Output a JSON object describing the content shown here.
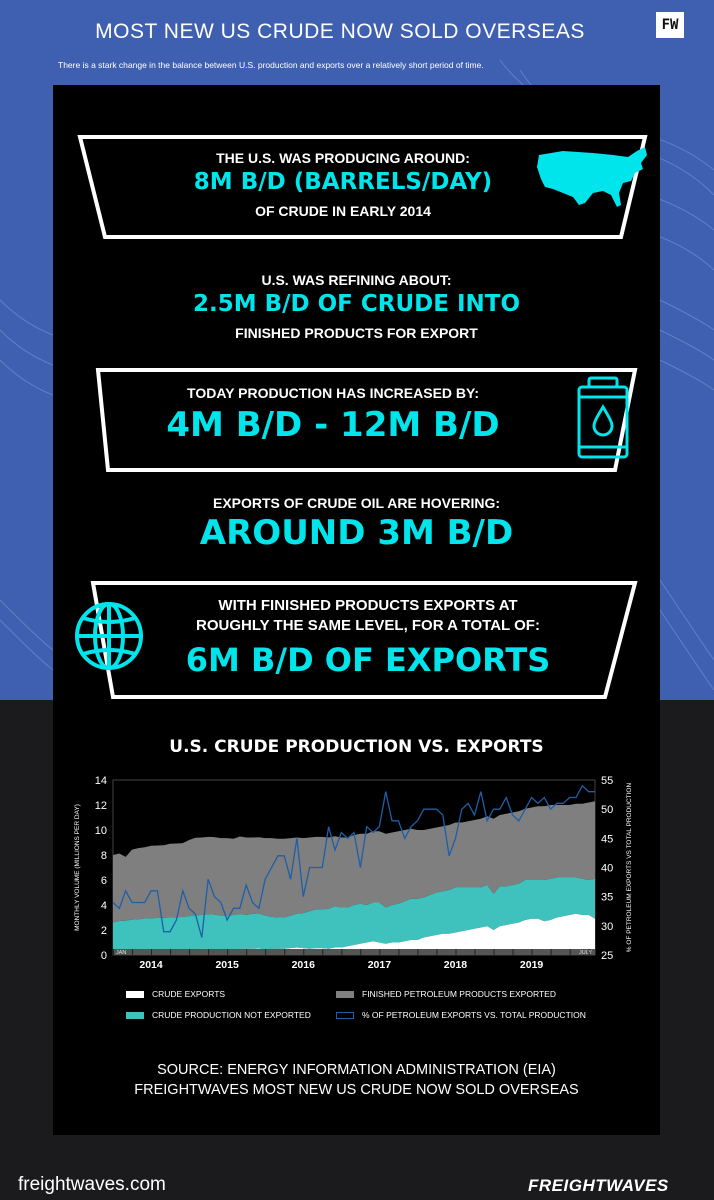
{
  "header": {
    "title": "MOST NEW US CRUDE NOW SOLD OVERSEAS",
    "subtitle": "There is a stark change in the balance between U.S. production and exports over a relatively short period of time."
  },
  "facts": {
    "f1_line1": "THE U.S. WAS PRODUCING AROUND:",
    "f1_line2": "8M B/D (BARRELS/DAY)",
    "f1_line3": "OF CRUDE IN EARLY 2014",
    "f2_line1": "U.S. WAS REFINING ABOUT:",
    "f2_line2": "2.5M B/D OF CRUDE INTO",
    "f2_line3": "FINISHED PRODUCTS FOR EXPORT",
    "f3_line1": "TODAY PRODUCTION HAS INCREASED BY:",
    "f3_line2": "4M B/D - 12M B/D",
    "f4_line1": "EXPORTS OF CRUDE OIL ARE HOVERING:",
    "f4_line2": "AROUND 3M B/D",
    "f5_line1": "WITH FINISHED PRODUCTS EXPORTS AT",
    "f5_line2": "ROUGHLY THE SAME LEVEL, FOR A TOTAL OF:",
    "f5_line3": "6M B/D OF EXPORTS"
  },
  "icons": [
    "usa-map-icon",
    "oil-barrel-icon",
    "globe-icon"
  ],
  "colors": {
    "accent": "#00e5ec",
    "background_top": "#3f5fb0",
    "panel": "#000000",
    "crude_exports": "#ffffff",
    "production_not_exported": "#3fc2bd",
    "finished_products": "#7f7f7f",
    "pct_line": "#1f5ea8"
  },
  "chart_data": {
    "type": "area",
    "title": "U.S. CRUDE PRODUCTION VS. EXPORTS",
    "ylabel": "MONTHLY VOLUME (MILLIONS PER DAY)",
    "y2label": "% OF PETROLEUM EXPORTS VS TOTAL PRODUCTION",
    "ylim": [
      0,
      14
    ],
    "y2lim": [
      25,
      55
    ],
    "yticks": [
      "0",
      "2",
      "4",
      "6",
      "8",
      "10",
      "12",
      "14"
    ],
    "y2ticks": [
      "25",
      "30",
      "35",
      "40",
      "45",
      "50",
      "55"
    ],
    "xticks": [
      "2014",
      "2015",
      "2016",
      "2017",
      "2018",
      "2019"
    ],
    "x_start_label": "JAN",
    "x_end_label": "JULY",
    "legend_placement": "bottom",
    "series": [
      {
        "name": "CRUDE EXPORTS",
        "color": "#ffffff",
        "stacked": true,
        "values": [
          0.2,
          0.22,
          0.25,
          0.28,
          0.3,
          0.32,
          0.34,
          0.36,
          0.38,
          0.4,
          0.42,
          0.45,
          0.45,
          0.48,
          0.5,
          0.5,
          0.48,
          0.45,
          0.45,
          0.45,
          0.48,
          0.5,
          0.5,
          0.52,
          0.45,
          0.45,
          0.5,
          0.5,
          0.55,
          0.6,
          0.55,
          0.5,
          0.55,
          0.55,
          0.5,
          0.6,
          0.6,
          0.7,
          0.8,
          0.9,
          1.0,
          1.1,
          1.0,
          0.9,
          1.0,
          1.0,
          1.1,
          1.2,
          1.2,
          1.4,
          1.5,
          1.6,
          1.7,
          1.7,
          1.8,
          1.9,
          2.0,
          2.1,
          2.2,
          2.3,
          2.0,
          2.3,
          2.4,
          2.5,
          2.6,
          2.8,
          2.9,
          2.9,
          2.7,
          2.8,
          3.0,
          3.1,
          3.2,
          3.3,
          3.2,
          3.2,
          2.9
        ]
      },
      {
        "name": "CRUDE PRODUCTION NOT EXPORTED",
        "color": "#3fc2bd",
        "stacked": true,
        "values": [
          2.4,
          2.5,
          2.5,
          2.55,
          2.55,
          2.6,
          2.6,
          2.6,
          2.6,
          2.6,
          2.6,
          2.6,
          2.65,
          2.7,
          2.7,
          2.75,
          2.75,
          2.7,
          2.7,
          2.75,
          2.8,
          2.7,
          2.8,
          2.8,
          2.7,
          2.6,
          2.5,
          2.5,
          2.6,
          2.7,
          2.8,
          3.0,
          3.1,
          3.1,
          3.2,
          3.3,
          3.2,
          3.1,
          3.2,
          3.2,
          3.0,
          3.1,
          3.2,
          2.9,
          3.0,
          3.1,
          3.2,
          3.3,
          3.3,
          3.2,
          3.3,
          3.4,
          3.4,
          3.5,
          3.6,
          3.5,
          3.4,
          3.3,
          3.2,
          3.3,
          2.9,
          3.2,
          3.1,
          3.1,
          3.1,
          3.2,
          3.1,
          3.1,
          3.3,
          3.3,
          3.2,
          3.1,
          3.0,
          2.9,
          2.9,
          2.8,
          3.2
        ]
      },
      {
        "name": "FINISHED PETROLEUM PRODUCTS EXPORTED",
        "color": "#7f7f7f",
        "stacked": true,
        "values": [
          5.4,
          5.4,
          5.1,
          5.6,
          5.7,
          5.7,
          5.8,
          5.8,
          5.8,
          5.9,
          5.9,
          5.9,
          6.1,
          6.2,
          6.2,
          6.2,
          6.2,
          6.2,
          6.2,
          6.1,
          6.2,
          6.2,
          6.1,
          6.1,
          6.2,
          6.3,
          6.3,
          6.3,
          6.2,
          6.1,
          6.0,
          5.9,
          5.8,
          5.8,
          5.7,
          5.6,
          5.6,
          5.6,
          5.6,
          5.6,
          5.7,
          5.7,
          5.7,
          5.9,
          5.8,
          5.8,
          5.7,
          5.6,
          5.5,
          5.4,
          5.3,
          5.2,
          5.2,
          5.2,
          5.2,
          5.2,
          5.3,
          5.4,
          5.5,
          5.5,
          6.0,
          5.7,
          5.8,
          5.8,
          5.8,
          5.7,
          5.8,
          5.9,
          5.9,
          5.9,
          5.8,
          5.8,
          5.8,
          5.9,
          6.0,
          6.2,
          6.2
        ]
      },
      {
        "name": "% OF PETROLEUM EXPORTS VS. TOTAL PRODUCTION",
        "color": "#1f5ea8",
        "axis": "right",
        "values": [
          34,
          33,
          36,
          34,
          34,
          34,
          36,
          36,
          29,
          29,
          31,
          36,
          33,
          32,
          28,
          38,
          35,
          34,
          31,
          33,
          33,
          37,
          34,
          33,
          38,
          40,
          42,
          42,
          38,
          45,
          35,
          40,
          40,
          40,
          47,
          43,
          46,
          45,
          46,
          40,
          47,
          46,
          47,
          53,
          48,
          48,
          45,
          47,
          48,
          50,
          50,
          50,
          49,
          42,
          45,
          50,
          51,
          49,
          53,
          48,
          50,
          50,
          52,
          49,
          48,
          50,
          52,
          51,
          52,
          50,
          51,
          51,
          52,
          52,
          54,
          53,
          53
        ]
      }
    ]
  },
  "legend": {
    "crude_exports": "CRUDE EXPORTS",
    "finished_products": "FINISHED PETROLEUM PRODUCTS EXPORTED",
    "not_exported": "CRUDE PRODUCTION NOT EXPORTED",
    "pct": "% OF PETROLEUM EXPORTS VS. TOTAL PRODUCTION"
  },
  "source": {
    "line1": "SOURCE: ENERGY INFORMATION ADMINISTRATION (EIA)",
    "line2": "FREIGHTWAVES MOST NEW US CRUDE NOW SOLD OVERSEAS"
  },
  "footer": {
    "site": "freightwaves.com",
    "brand": "FREIGHTWAVES"
  }
}
